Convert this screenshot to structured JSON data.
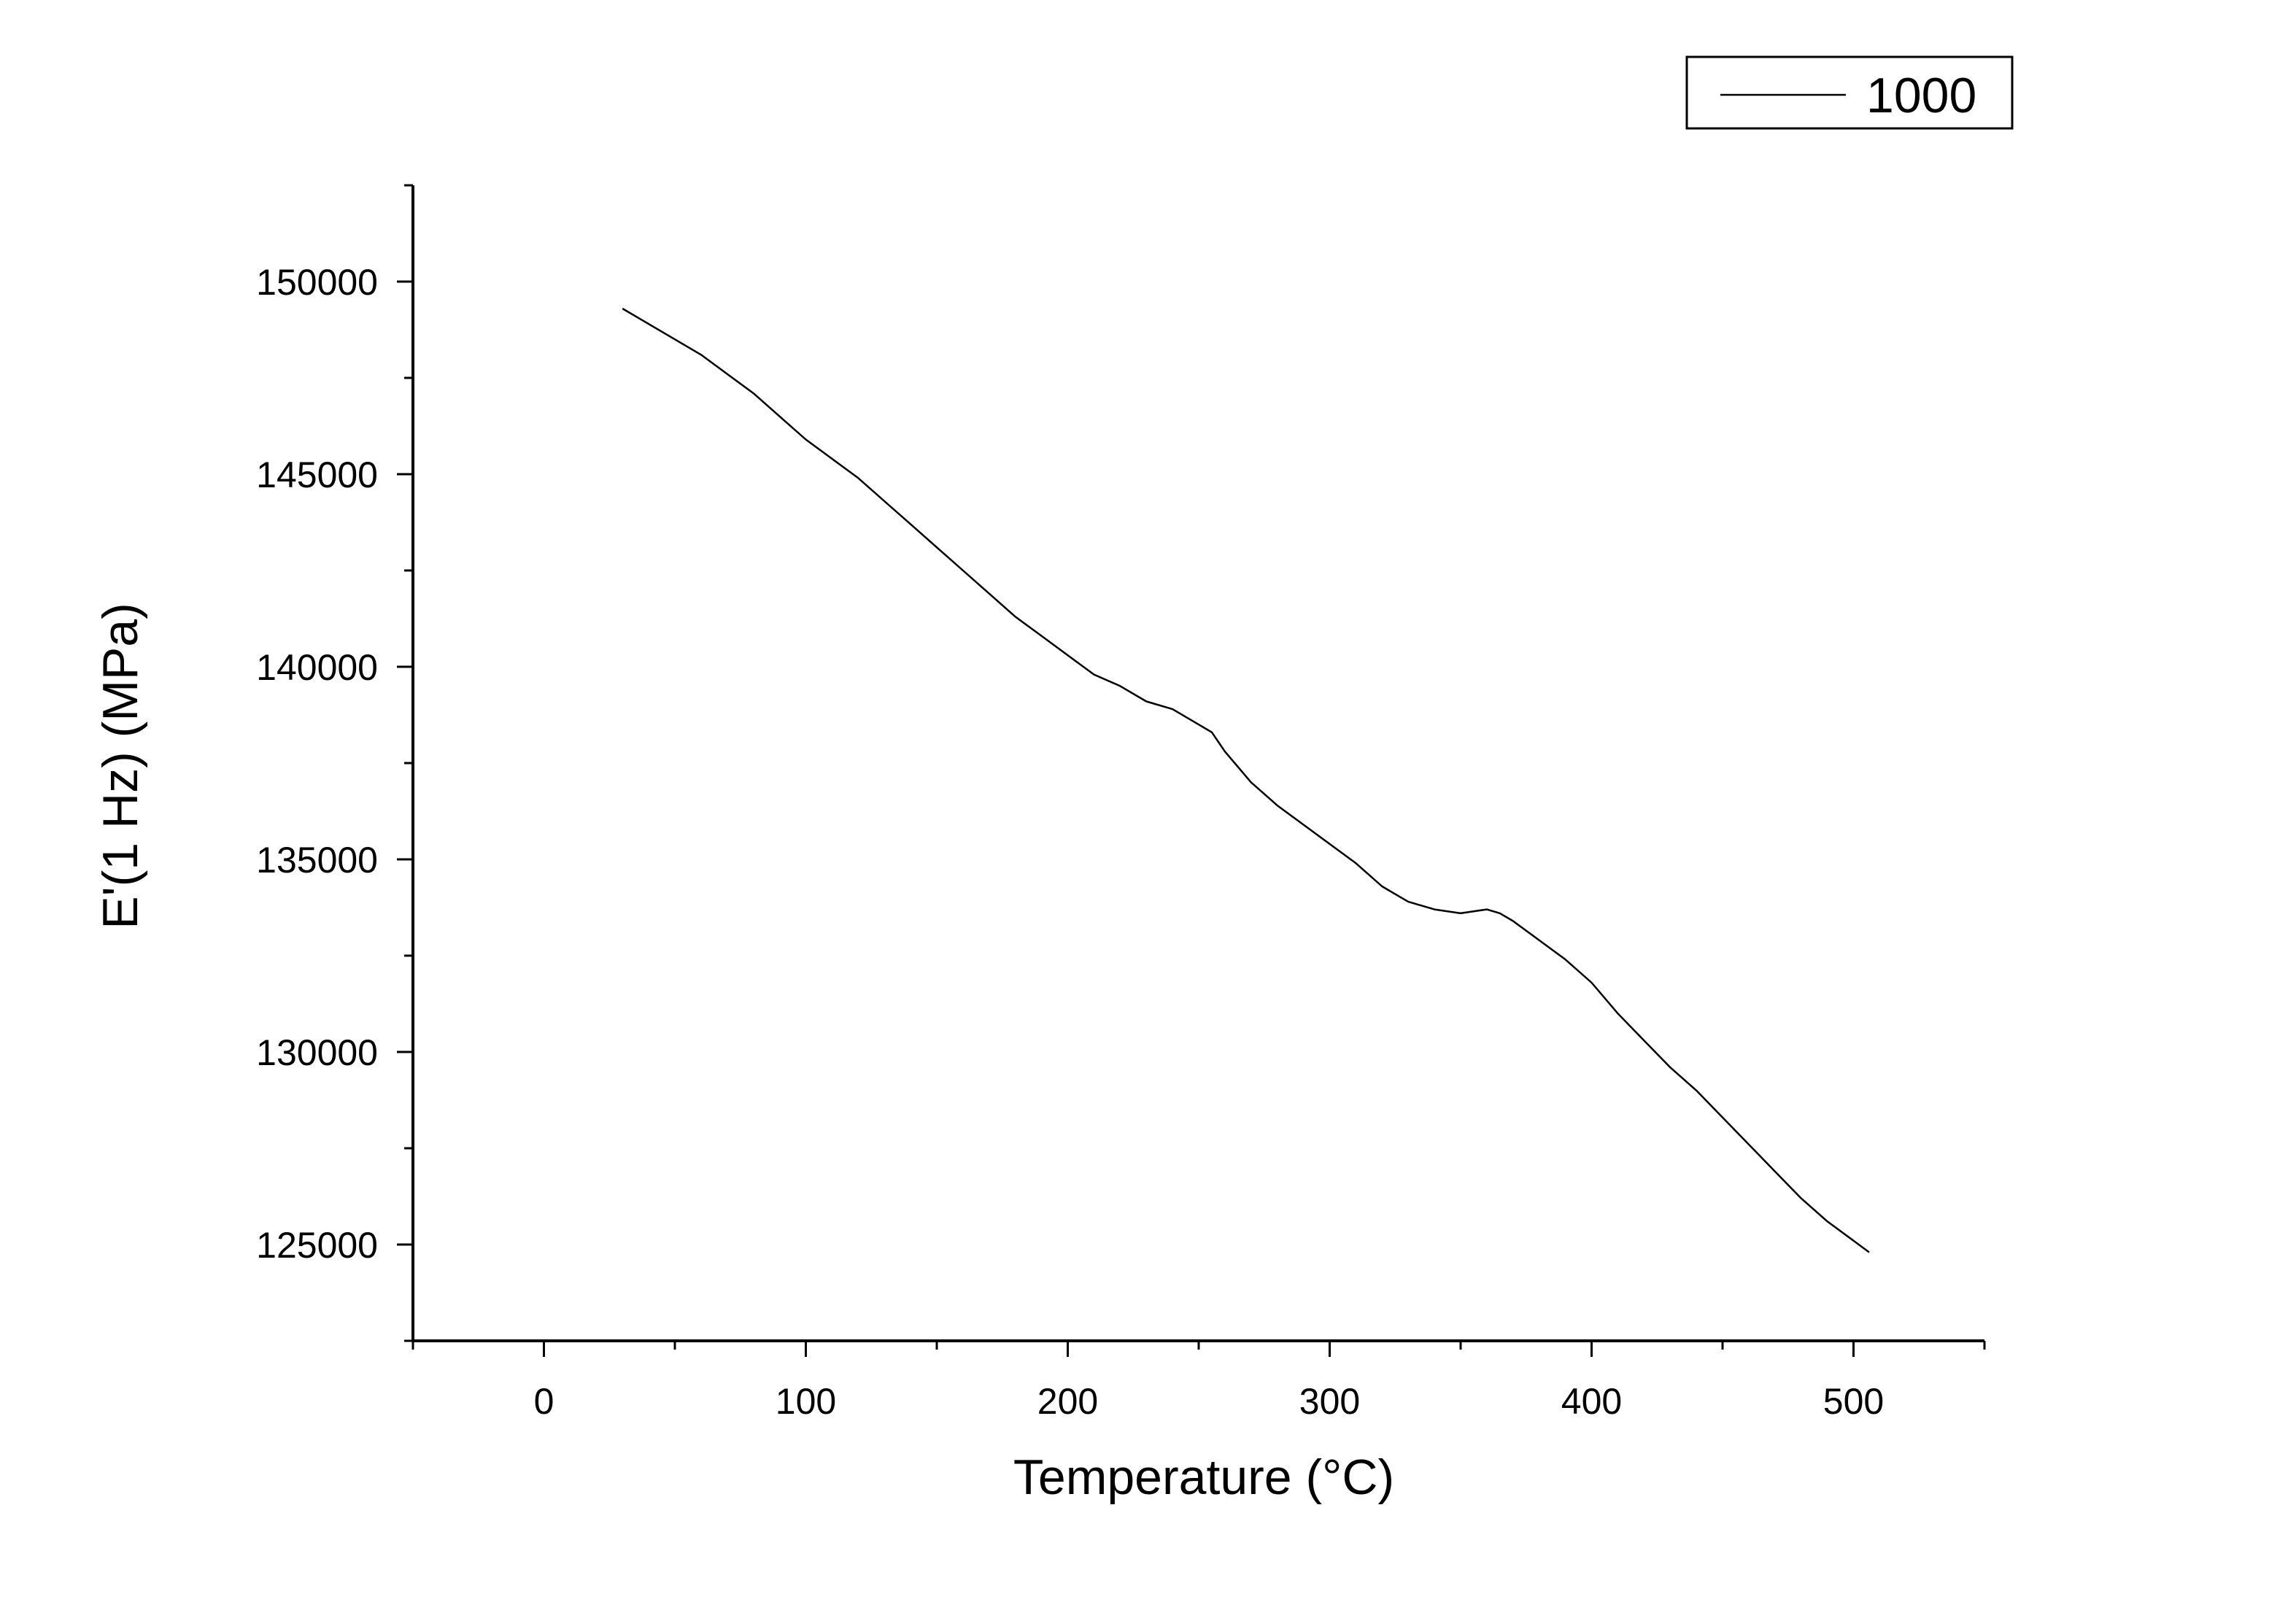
{
  "chart_data": {
    "type": "line",
    "xlabel": "Temperature (°C)",
    "ylabel": "E'(1 Hz) (MPa)",
    "xlim": [
      -50,
      550
    ],
    "ylim": [
      122500,
      152500
    ],
    "x_ticks": [
      0,
      100,
      200,
      300,
      400,
      500
    ],
    "y_ticks": [
      125000,
      130000,
      135000,
      140000,
      145000,
      150000
    ],
    "legend": {
      "placement": "top-right",
      "entries": [
        "1000"
      ]
    },
    "grid": false,
    "series": [
      {
        "name": "1000",
        "color": "#000000",
        "x": [
          30,
          40,
          50,
          60,
          70,
          80,
          90,
          100,
          110,
          120,
          130,
          140,
          150,
          160,
          170,
          180,
          190,
          200,
          210,
          220,
          230,
          240,
          250,
          255,
          260,
          270,
          280,
          290,
          300,
          310,
          320,
          330,
          340,
          350,
          360,
          365,
          370,
          380,
          390,
          400,
          410,
          420,
          430,
          440,
          450,
          460,
          470,
          480,
          490,
          500,
          506
        ],
        "y": [
          149300,
          148900,
          148500,
          148100,
          147600,
          147100,
          146500,
          145900,
          145400,
          144900,
          144300,
          143700,
          143100,
          142500,
          141900,
          141300,
          140800,
          140300,
          139800,
          139500,
          139100,
          138900,
          138500,
          138300,
          137800,
          137000,
          136400,
          135900,
          135400,
          134900,
          134300,
          133900,
          133700,
          133600,
          133700,
          133600,
          133400,
          132900,
          132400,
          131800,
          131000,
          130300,
          129600,
          129000,
          128300,
          127600,
          126900,
          126200,
          125600,
          125100,
          124800
        ]
      }
    ]
  }
}
